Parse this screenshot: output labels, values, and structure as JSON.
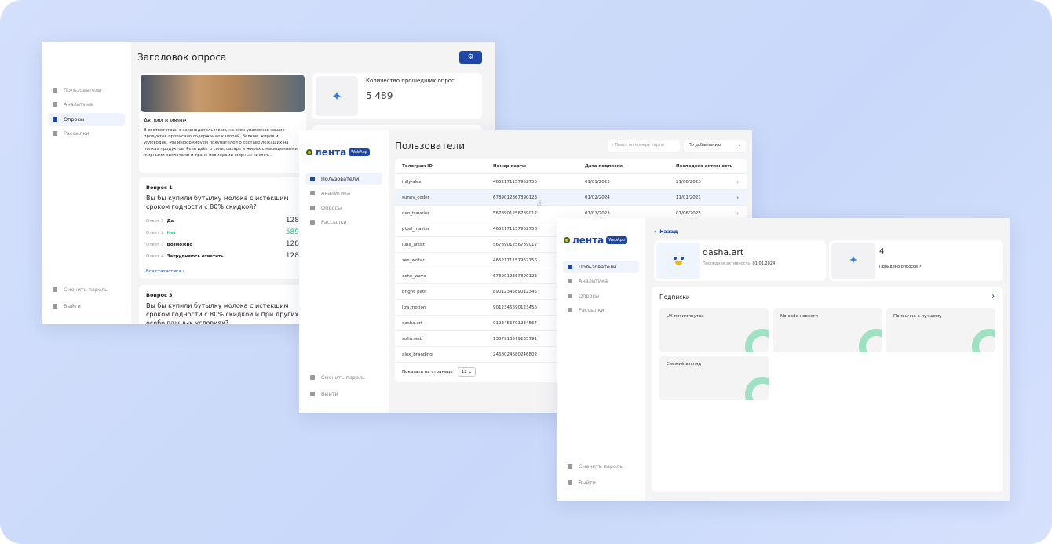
{
  "colors": {
    "accent": "#1e47a8",
    "green": "#2cc77a",
    "background": "#cfdcfb"
  },
  "nav": {
    "users": "Пользователи",
    "analytics": "Аналитика",
    "surveys": "Опросы",
    "mailings": "Рассылки",
    "change_password": "Сменить пароль",
    "logout": "Выйти"
  },
  "logo": {
    "text": "лента",
    "badge": "WebApp"
  },
  "survey": {
    "title": "Заголовок опроса",
    "settings_icon": "gear-icon",
    "promo_title": "Акции в июне",
    "promo_text": "В соответствии с законодательством, на всех упаковках наших продуктов прописано содержание калорий, белков, жиров и углеводов. Мы информируем покупателей о составе лежащих на полках продуктов. Речь идёт о соли, сахаре и жирах с насыщенными жирными кислотами и транс-изомерами жирных кислот...",
    "stat_label": "Количество прошедших опрос",
    "stat_value": "5 489",
    "q1": {
      "label": "Вопрос 1",
      "text": "Вы бы купили бутылку молока с истекшим сроком годности с 80% скидкой?",
      "answers": [
        {
          "n": "Ответ 1",
          "t": "Да",
          "v": "128"
        },
        {
          "n": "Ответ 2",
          "t": "Нет",
          "v": "589"
        },
        {
          "n": "Ответ 3",
          "t": "Возможно",
          "v": "128"
        },
        {
          "n": "Ответ 4",
          "t": "Затрудняюсь ответить",
          "v": "128"
        }
      ],
      "all_stats": "Вся статистика"
    },
    "q3": {
      "label": "Вопрос 3",
      "text": "Вы бы купили бутылку молока с истекшим сроком годности с 80% скидкой и при других особо важных условиях?"
    }
  },
  "users": {
    "title": "Пользователи",
    "search_placeholder": "Поиск по номеру карты",
    "sort": "По добавлению",
    "columns": [
      "Телеграм ID",
      "Номер карты",
      "Дата подписки",
      "Последняя активность"
    ],
    "rows": [
      [
        "inily-alex",
        "4652171157962756",
        "01/01/2023",
        "21/06/2023"
      ],
      [
        "sunny_coder",
        "6789012367890123",
        "01/02/2024",
        "11/01/2021"
      ],
      [
        "neo_traveler",
        "5678901256789012",
        "01/01/2023",
        "01/06/2025"
      ],
      [
        "pixel_master",
        "4652171157962756",
        "",
        ""
      ],
      [
        "luna_artist",
        "5678901256789012",
        "",
        ""
      ],
      [
        "zen_writer",
        "4652171157962756",
        "",
        ""
      ],
      [
        "echo_wave",
        "6789012367890123",
        "",
        ""
      ],
      [
        "bright_path",
        "8901234589012345",
        "",
        ""
      ],
      [
        "liza.motion",
        "9012345690123456",
        "",
        ""
      ],
      [
        "dasha.art",
        "0123456701234567",
        "",
        ""
      ],
      [
        "sofia.web",
        "1357913579135791",
        "",
        ""
      ],
      [
        "alex_branding",
        "2468024680246802",
        "",
        ""
      ]
    ],
    "per_page_label": "Показать на странице",
    "per_page": "12"
  },
  "profile": {
    "back": "Назад",
    "name": "dasha.art",
    "last_activity_label": "Последняя активность",
    "last_activity": "01.01.2024",
    "surveys_count": "4",
    "surveys_label": "Пройдено опросов",
    "subscriptions_title": "Подписки",
    "subscriptions": [
      "UX-пятиминутка",
      "No-code новости",
      "Привычка к лучшему",
      "Свежий взгляд"
    ]
  }
}
